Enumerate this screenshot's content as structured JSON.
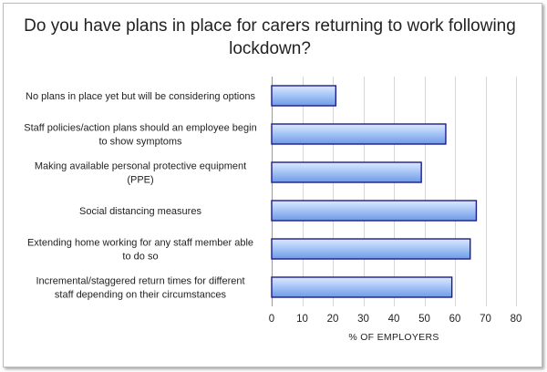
{
  "chart_data": {
    "type": "bar",
    "orientation": "horizontal",
    "title": "Do you have plans in place for carers returning to work following lockdown?",
    "xlabel": "% OF EMPLOYERS",
    "ylabel": "",
    "xlim": [
      0,
      80
    ],
    "xticks": [
      0,
      10,
      20,
      30,
      40,
      50,
      60,
      70,
      80
    ],
    "grid": "vertical",
    "legend": "none",
    "bar_color": "#8eb4f0",
    "bar_edge_color": "#1c1c8c",
    "categories": [
      [
        "No plans in place yet but will be considering options"
      ],
      [
        "Staff policies/action plans should an employee begin",
        "to show symptoms"
      ],
      [
        "Making available personal protective equipment",
        "(PPE)"
      ],
      [
        "Social distancing measures"
      ],
      [
        "Extending home working for any staff member able",
        "to do so"
      ],
      [
        "Incremental/staggered return times for different",
        "staff depending on their circumstances"
      ]
    ],
    "values": [
      21,
      57,
      49,
      67,
      65,
      59
    ]
  }
}
